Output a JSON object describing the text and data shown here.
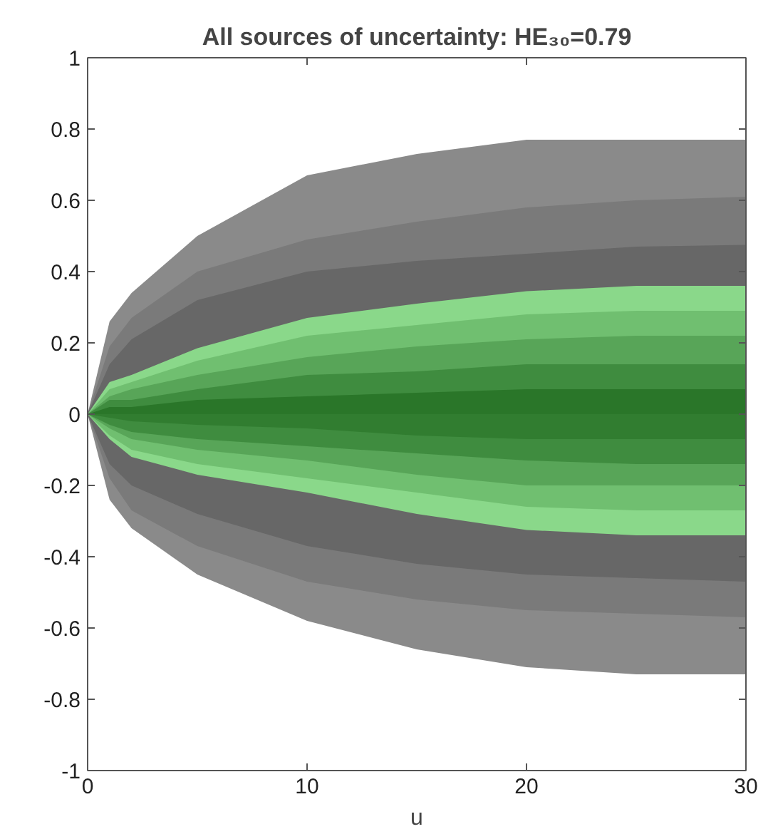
{
  "chart_data": {
    "type": "area",
    "title": "All sources of uncertainty: HE₃₀=0.79",
    "xlabel": "u",
    "x": [
      0,
      1,
      2,
      5,
      10,
      15,
      20,
      25,
      30
    ],
    "series": [
      {
        "color": "#8a8a8a",
        "values": [
          0,
          0.26,
          0.34,
          0.5,
          0.67,
          0.73,
          0.77,
          0.77,
          0.77
        ]
      },
      {
        "color": "#8a8a8a",
        "values": [
          0,
          -0.24,
          -0.32,
          -0.45,
          -0.58,
          -0.66,
          -0.71,
          -0.73,
          -0.73
        ]
      },
      {
        "color": "#7a7a7a",
        "values": [
          0,
          0.19,
          0.27,
          0.4,
          0.49,
          0.54,
          0.58,
          0.6,
          0.61
        ]
      },
      {
        "color": "#7a7a7a",
        "values": [
          0,
          -0.18,
          -0.27,
          -0.37,
          -0.47,
          -0.52,
          -0.55,
          -0.56,
          -0.57
        ]
      },
      {
        "color": "#676767",
        "values": [
          0,
          0.14,
          0.21,
          0.32,
          0.4,
          0.43,
          0.45,
          0.47,
          0.475
        ]
      },
      {
        "color": "#676767",
        "values": [
          0,
          -0.14,
          -0.2,
          -0.28,
          -0.37,
          -0.42,
          -0.45,
          -0.46,
          -0.47
        ]
      },
      {
        "color": "#8ad88a",
        "values": [
          0,
          0.09,
          0.11,
          0.185,
          0.27,
          0.31,
          0.345,
          0.36,
          0.36
        ]
      },
      {
        "color": "#8ad88a",
        "values": [
          0,
          -0.07,
          -0.12,
          -0.17,
          -0.22,
          -0.28,
          -0.325,
          -0.34,
          -0.34
        ]
      },
      {
        "color": "#70bf70",
        "values": [
          0,
          0.07,
          0.09,
          0.15,
          0.22,
          0.25,
          0.28,
          0.29,
          0.29
        ]
      },
      {
        "color": "#70bf70",
        "values": [
          0,
          -0.06,
          -0.1,
          -0.14,
          -0.18,
          -0.22,
          -0.26,
          -0.27,
          -0.27
        ]
      },
      {
        "color": "#58a558",
        "values": [
          0,
          0.05,
          0.07,
          0.11,
          0.16,
          0.19,
          0.21,
          0.22,
          0.22
        ]
      },
      {
        "color": "#58a558",
        "values": [
          0,
          -0.04,
          -0.07,
          -0.1,
          -0.13,
          -0.17,
          -0.2,
          -0.2,
          -0.2
        ]
      },
      {
        "color": "#3f8c3f",
        "values": [
          0,
          0.04,
          0.04,
          0.07,
          0.11,
          0.12,
          0.14,
          0.14,
          0.14
        ]
      },
      {
        "color": "#3f8c3f",
        "values": [
          0,
          -0.03,
          -0.05,
          -0.07,
          -0.09,
          -0.11,
          -0.13,
          -0.14,
          -0.14
        ]
      },
      {
        "color": "#2a7629",
        "values": [
          0,
          0.02,
          0.02,
          0.04,
          0.05,
          0.06,
          0.07,
          0.07,
          0.07
        ]
      },
      {
        "color": "#317d30",
        "values": [
          0,
          -0.01,
          -0.02,
          -0.03,
          -0.04,
          -0.06,
          -0.07,
          -0.07,
          -0.07
        ]
      }
    ],
    "xlim": [
      0,
      30
    ],
    "ylim": [
      -1,
      1
    ],
    "xticks": [
      0,
      10,
      20,
      30
    ],
    "yticks": [
      -1,
      -0.8,
      -0.6,
      -0.4,
      -0.2,
      0,
      0.2,
      0.4,
      0.6,
      0.8,
      1
    ],
    "grid": false
  }
}
